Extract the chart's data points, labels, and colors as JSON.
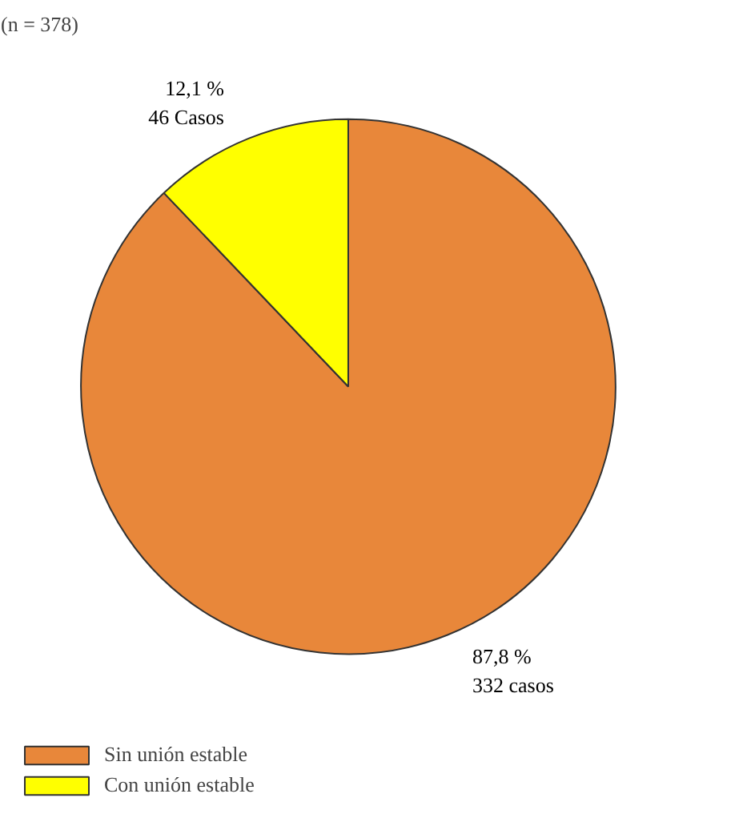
{
  "chart_data": {
    "type": "pie",
    "title": "(n = 378)",
    "categories": [
      "Sin unión estable",
      "Con unión estable"
    ],
    "values": [
      87.8,
      12.1
    ],
    "colors": [
      "#e8873a",
      "#ffff00"
    ],
    "value_labels": [
      "87,8 %\n332 casos",
      "12,1 %\n46 Casos"
    ],
    "legend": "bottom left"
  }
}
